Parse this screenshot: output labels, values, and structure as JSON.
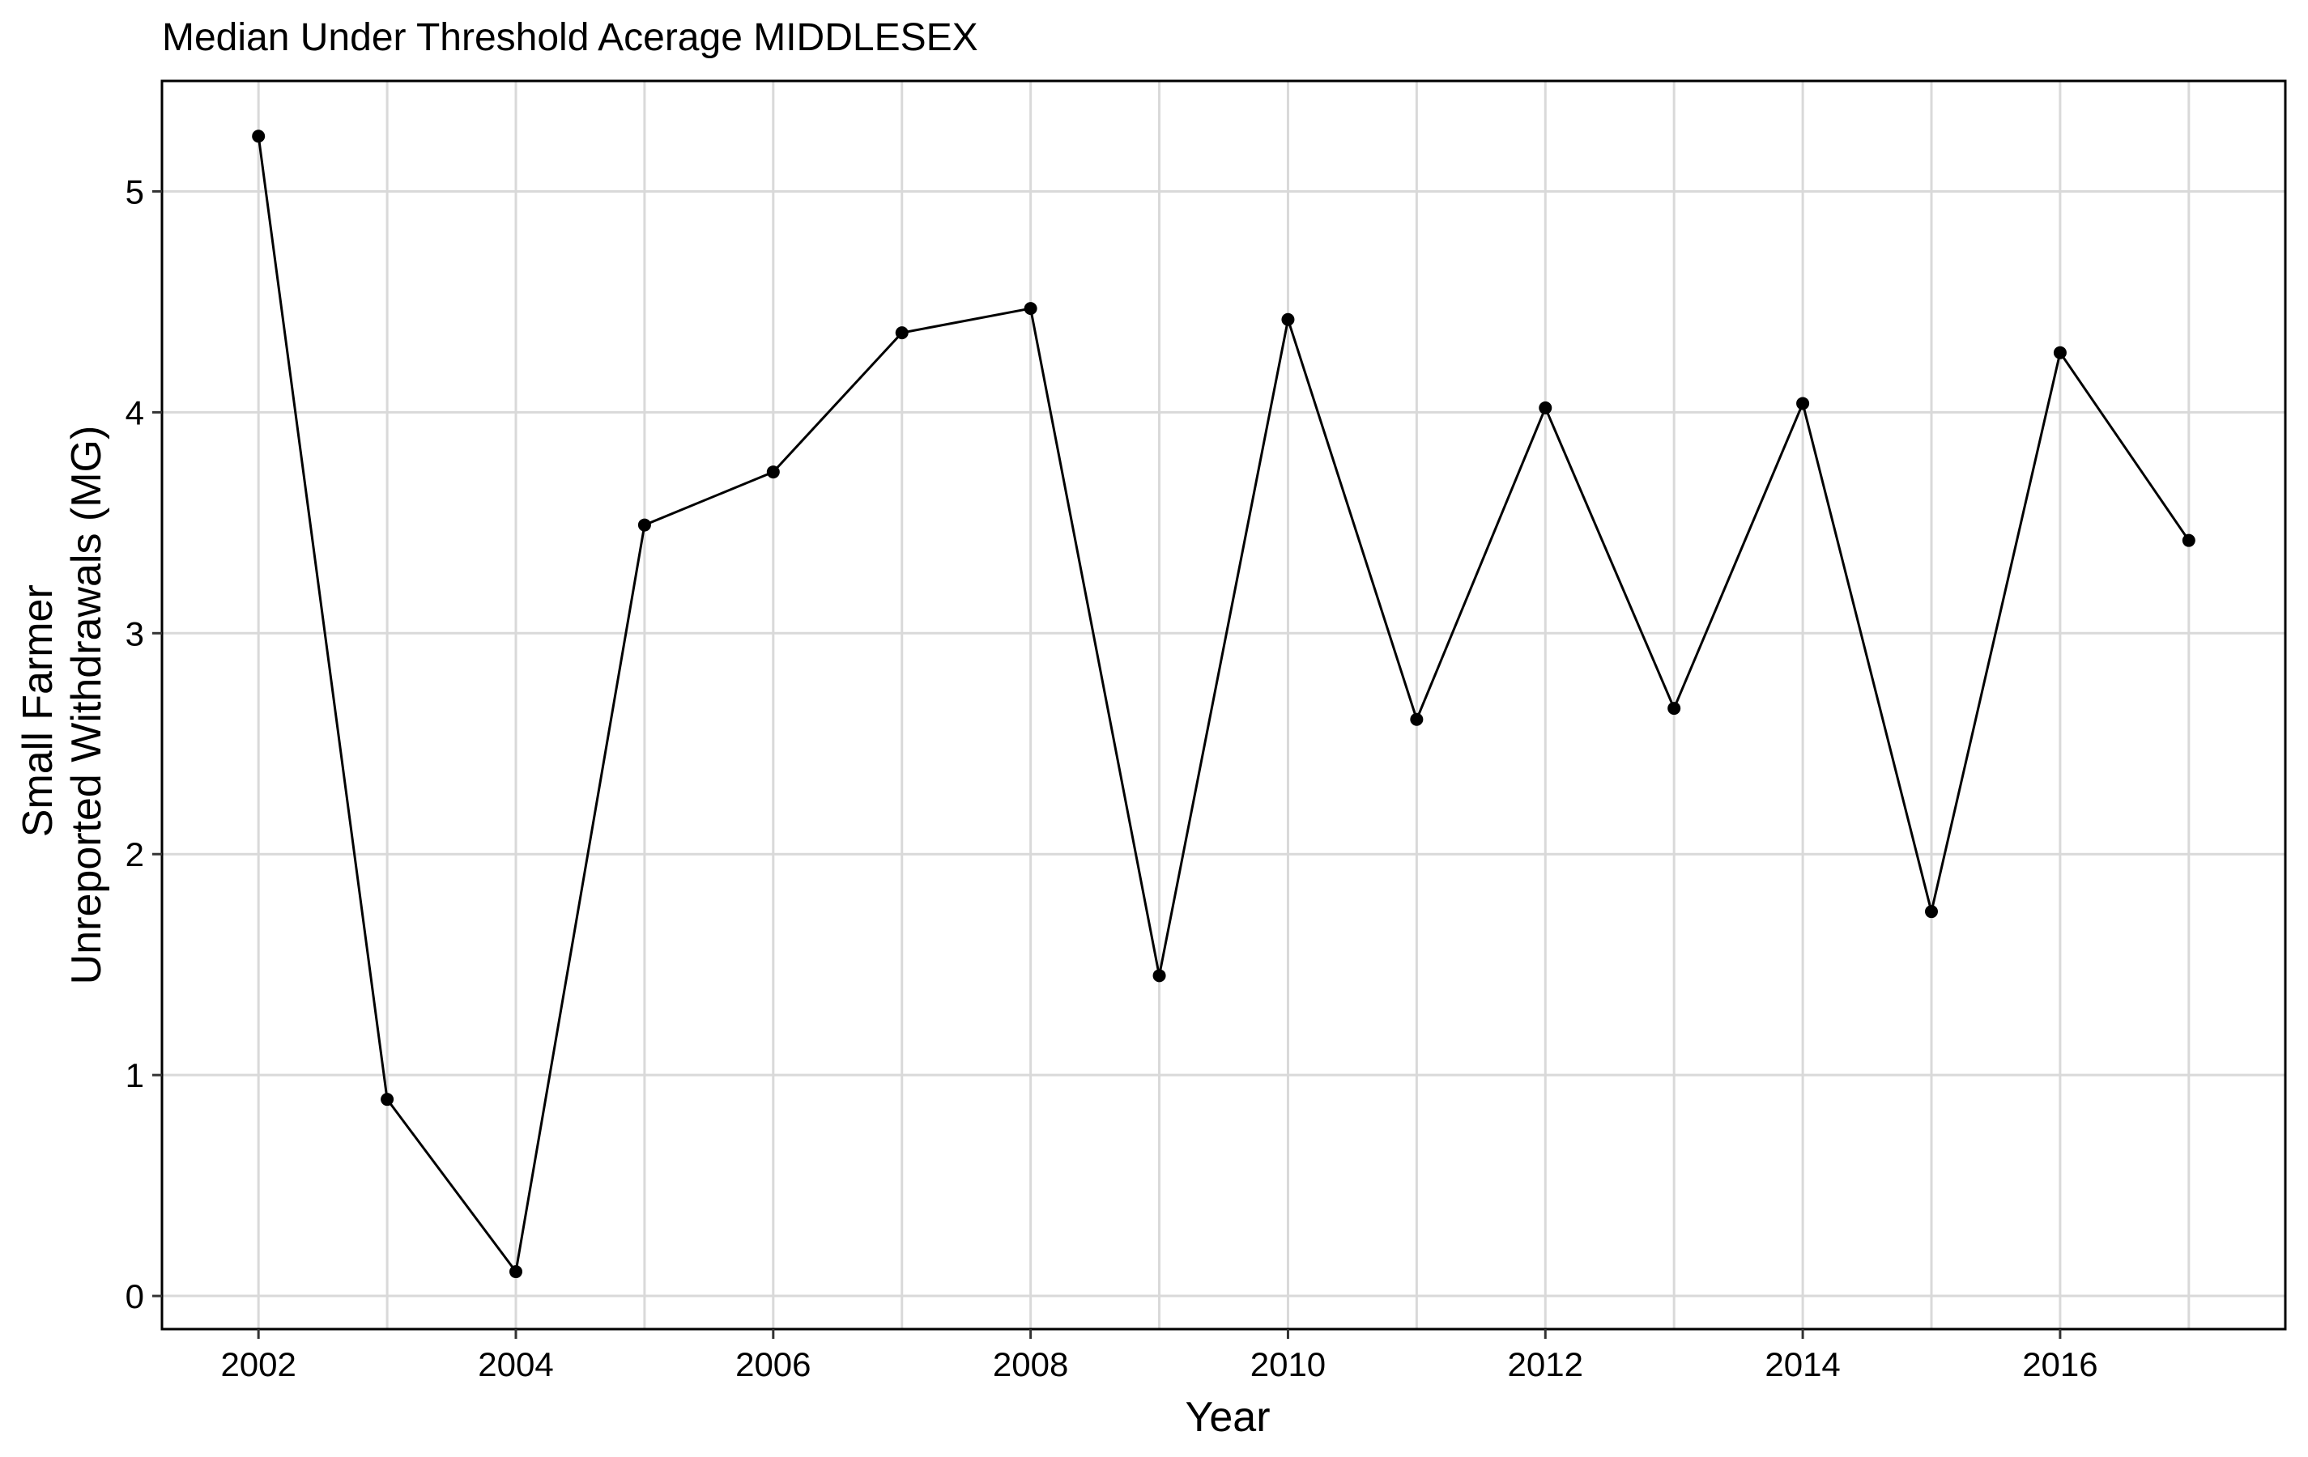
{
  "chart_data": {
    "type": "line",
    "title": "Median Under Threshold Acerage MIDDLESEX",
    "xlabel": "Year",
    "ylabel_lines": [
      "Small Farmer",
      "Unreported Withdrawals (MG)"
    ],
    "xlim": [
      2001.25,
      2017.75
    ],
    "ylim": [
      -0.15,
      5.5
    ],
    "x_ticks": [
      2002,
      2004,
      2006,
      2008,
      2010,
      2012,
      2014,
      2016
    ],
    "x_tick_labels": [
      "2002",
      "2004",
      "2006",
      "2008",
      "2010",
      "2012",
      "2014",
      "2016"
    ],
    "y_ticks": [
      0,
      1,
      2,
      3,
      4,
      5
    ],
    "y_tick_labels": [
      "0",
      "1",
      "2",
      "3",
      "4",
      "5"
    ],
    "grid": true,
    "x_minor_grid": [
      2003,
      2005,
      2007,
      2009,
      2011,
      2013,
      2015,
      2017
    ],
    "line_color": "#000000",
    "grid_color": "#d9d9d9",
    "series": [
      {
        "x": [
          2002,
          2003,
          2004,
          2005,
          2006,
          2007,
          2008,
          2009,
          2010,
          2011,
          2012,
          2013,
          2014,
          2015,
          2016,
          2017
        ],
        "values": [
          5.25,
          0.89,
          0.11,
          3.49,
          3.73,
          4.36,
          4.47,
          1.45,
          4.42,
          2.61,
          4.02,
          2.66,
          4.04,
          1.74,
          4.27,
          3.42
        ]
      }
    ]
  }
}
